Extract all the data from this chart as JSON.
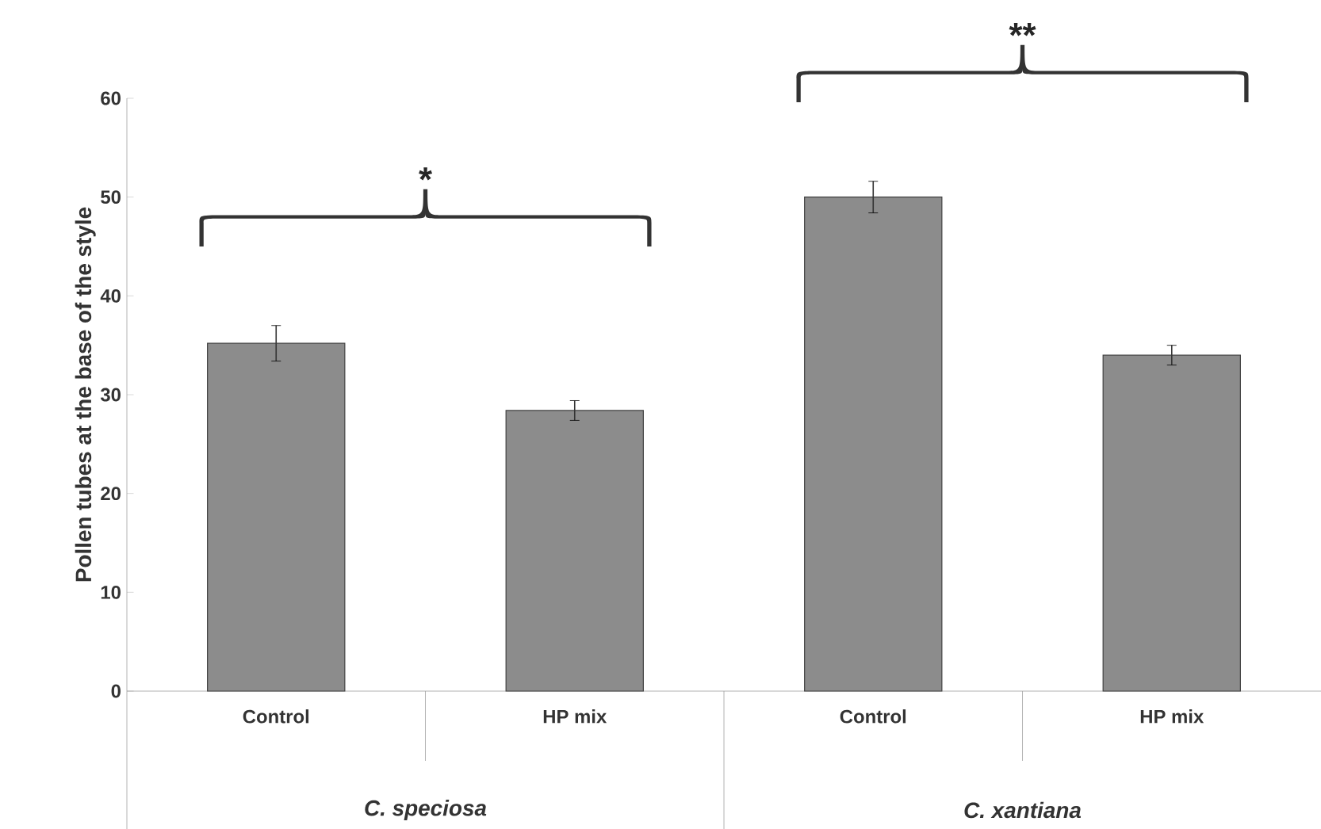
{
  "chart_data": {
    "type": "bar",
    "ylabel": "Pollen tubes at the base of the style",
    "categories": [
      "Control",
      "HP mix",
      "Control",
      "HP mix"
    ],
    "values": [
      35.2,
      28.4,
      50,
      34
    ],
    "errors": [
      1.8,
      1.0,
      1.6,
      1.0
    ],
    "color": "#8c8c8c",
    "ylim": [
      0,
      60
    ],
    "yticks": [
      0,
      10,
      20,
      30,
      40,
      50,
      60
    ],
    "annotations": [
      "*",
      "**",
      "C. speciosa",
      "C. xantiana"
    ]
  }
}
